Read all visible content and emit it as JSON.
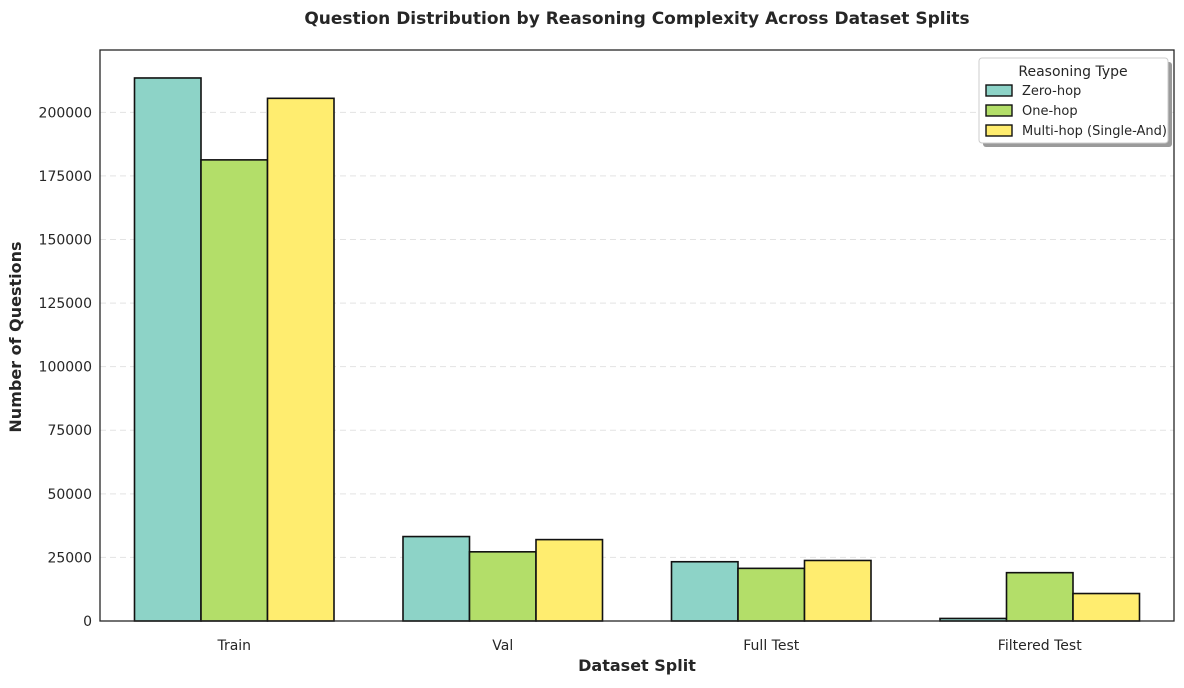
{
  "chart_data": {
    "type": "bar",
    "title": "Question Distribution by Reasoning Complexity Across Dataset Splits",
    "xlabel": "Dataset Split",
    "ylabel": "Number of Questions",
    "categories": [
      "Train",
      "Val",
      "Full Test",
      "Filtered Test"
    ],
    "series": [
      {
        "name": "Zero-hop",
        "color": "#8dd3c7",
        "values": [
          213500,
          33200,
          23300,
          1000
        ]
      },
      {
        "name": "One-hop",
        "color": "#b3de69",
        "values": [
          181300,
          27200,
          20700,
          19000
        ]
      },
      {
        "name": "Multi-hop (Single-And)",
        "color": "#ffed6f",
        "values": [
          205500,
          32000,
          23800,
          10800
        ]
      }
    ],
    "yticks": [
      0,
      25000,
      50000,
      75000,
      100000,
      125000,
      150000,
      175000,
      200000
    ],
    "ylim": [
      0,
      224500
    ],
    "grid": "y-dashed",
    "legend": {
      "title": "Reasoning Type",
      "placement": "top-right"
    }
  }
}
